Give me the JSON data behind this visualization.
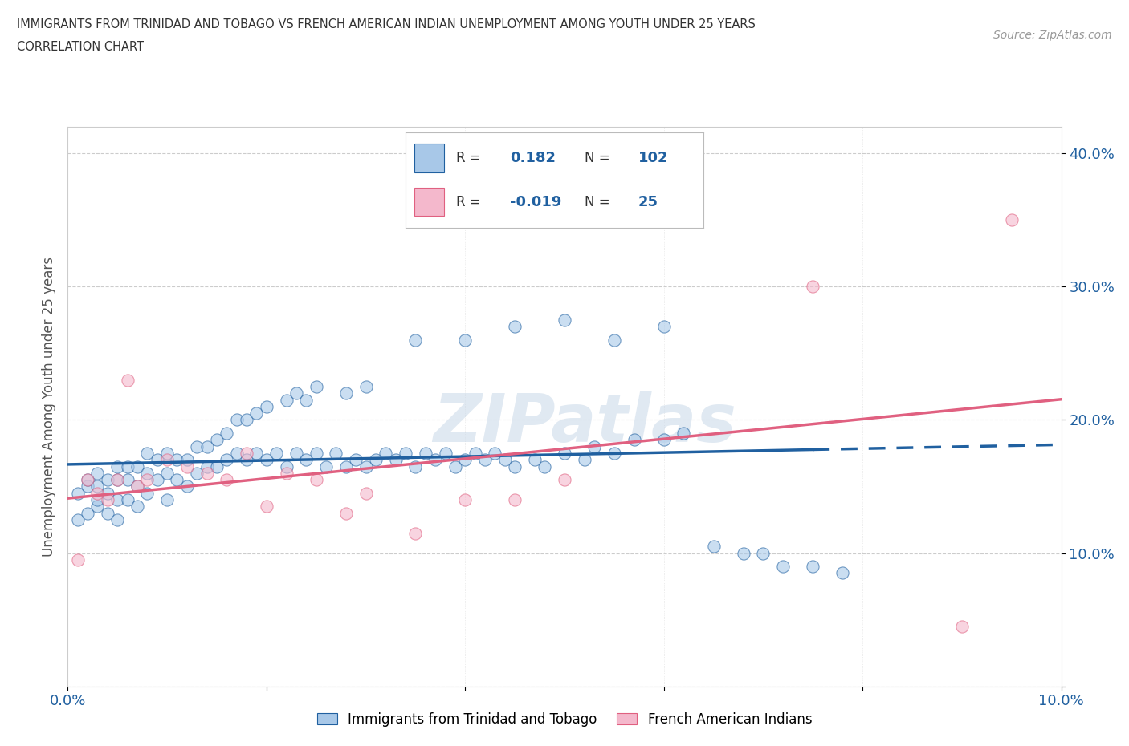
{
  "title_line1": "IMMIGRANTS FROM TRINIDAD AND TOBAGO VS FRENCH AMERICAN INDIAN UNEMPLOYMENT AMONG YOUTH UNDER 25 YEARS",
  "title_line2": "CORRELATION CHART",
  "source_text": "Source: ZipAtlas.com",
  "ylabel": "Unemployment Among Youth under 25 years",
  "xlim": [
    0.0,
    0.1
  ],
  "ylim": [
    0.0,
    0.42
  ],
  "x_ticks": [
    0.0,
    0.02,
    0.04,
    0.06,
    0.08,
    0.1
  ],
  "x_tick_labels": [
    "0.0%",
    "",
    "",
    "",
    "",
    "10.0%"
  ],
  "y_ticks": [
    0.0,
    0.1,
    0.2,
    0.3,
    0.4
  ],
  "y_tick_labels": [
    "",
    "10.0%",
    "20.0%",
    "30.0%",
    "40.0%"
  ],
  "blue_color": "#a8c8e8",
  "pink_color": "#f4b8cc",
  "blue_line_color": "#2060a0",
  "pink_line_color": "#e06080",
  "watermark_text": "ZIPatlas",
  "legend_R1": "0.182",
  "legend_N1": "102",
  "legend_R2": "-0.019",
  "legend_N2": "25",
  "blue_scatter_x": [
    0.001,
    0.001,
    0.002,
    0.002,
    0.002,
    0.003,
    0.003,
    0.003,
    0.003,
    0.004,
    0.004,
    0.004,
    0.005,
    0.005,
    0.005,
    0.005,
    0.006,
    0.006,
    0.006,
    0.007,
    0.007,
    0.007,
    0.008,
    0.008,
    0.008,
    0.009,
    0.009,
    0.01,
    0.01,
    0.01,
    0.011,
    0.011,
    0.012,
    0.012,
    0.013,
    0.013,
    0.014,
    0.014,
    0.015,
    0.015,
    0.016,
    0.016,
    0.017,
    0.017,
    0.018,
    0.018,
    0.019,
    0.019,
    0.02,
    0.02,
    0.021,
    0.022,
    0.022,
    0.023,
    0.023,
    0.024,
    0.024,
    0.025,
    0.025,
    0.026,
    0.027,
    0.028,
    0.028,
    0.029,
    0.03,
    0.03,
    0.031,
    0.032,
    0.033,
    0.034,
    0.035,
    0.036,
    0.037,
    0.038,
    0.039,
    0.04,
    0.041,
    0.042,
    0.043,
    0.044,
    0.045,
    0.047,
    0.048,
    0.05,
    0.052,
    0.053,
    0.055,
    0.057,
    0.06,
    0.062,
    0.065,
    0.068,
    0.07,
    0.072,
    0.075,
    0.078,
    0.04,
    0.035,
    0.045,
    0.05,
    0.055,
    0.06
  ],
  "blue_scatter_y": [
    0.125,
    0.145,
    0.13,
    0.15,
    0.155,
    0.135,
    0.14,
    0.15,
    0.16,
    0.13,
    0.145,
    0.155,
    0.125,
    0.14,
    0.155,
    0.165,
    0.14,
    0.155,
    0.165,
    0.135,
    0.15,
    0.165,
    0.145,
    0.16,
    0.175,
    0.155,
    0.17,
    0.14,
    0.16,
    0.175,
    0.155,
    0.17,
    0.15,
    0.17,
    0.16,
    0.18,
    0.165,
    0.18,
    0.165,
    0.185,
    0.17,
    0.19,
    0.175,
    0.2,
    0.17,
    0.2,
    0.175,
    0.205,
    0.17,
    0.21,
    0.175,
    0.165,
    0.215,
    0.175,
    0.22,
    0.17,
    0.215,
    0.175,
    0.225,
    0.165,
    0.175,
    0.165,
    0.22,
    0.17,
    0.165,
    0.225,
    0.17,
    0.175,
    0.17,
    0.175,
    0.165,
    0.175,
    0.17,
    0.175,
    0.165,
    0.17,
    0.175,
    0.17,
    0.175,
    0.17,
    0.165,
    0.17,
    0.165,
    0.175,
    0.17,
    0.18,
    0.175,
    0.185,
    0.185,
    0.19,
    0.105,
    0.1,
    0.1,
    0.09,
    0.09,
    0.085,
    0.26,
    0.26,
    0.27,
    0.275,
    0.26,
    0.27
  ],
  "pink_scatter_x": [
    0.001,
    0.002,
    0.003,
    0.004,
    0.005,
    0.006,
    0.007,
    0.008,
    0.01,
    0.012,
    0.014,
    0.016,
    0.018,
    0.02,
    0.022,
    0.025,
    0.028,
    0.03,
    0.035,
    0.04,
    0.045,
    0.075,
    0.05,
    0.09,
    0.095
  ],
  "pink_scatter_y": [
    0.095,
    0.155,
    0.145,
    0.14,
    0.155,
    0.23,
    0.15,
    0.155,
    0.17,
    0.165,
    0.16,
    0.155,
    0.175,
    0.135,
    0.16,
    0.155,
    0.13,
    0.145,
    0.115,
    0.14,
    0.14,
    0.3,
    0.155,
    0.045,
    0.35
  ]
}
